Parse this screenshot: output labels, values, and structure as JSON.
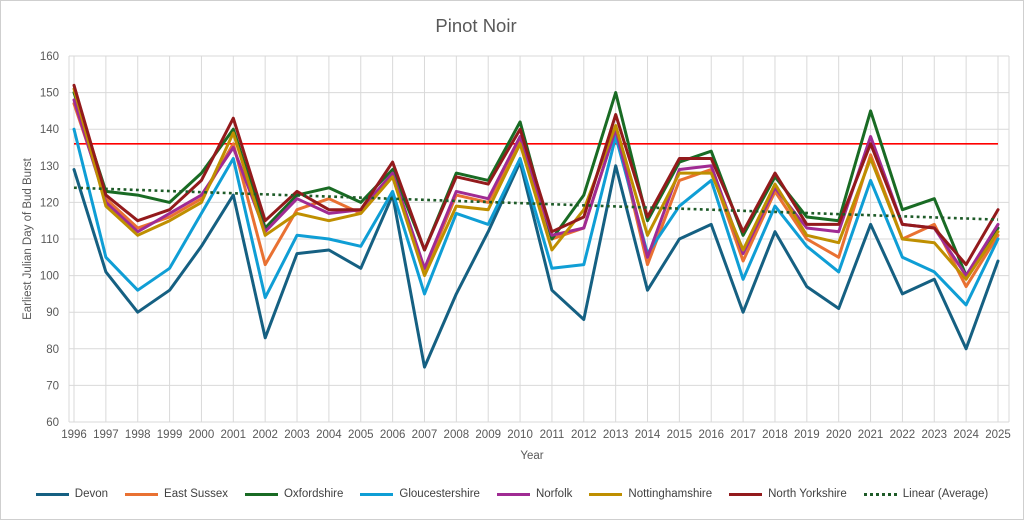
{
  "style": {
    "text_color": "#595959",
    "grid_color": "#D9D9D9",
    "legend_text_color": "#404040",
    "background": "#FFFFFF"
  },
  "chart_data": {
    "type": "line",
    "title": "Pinot Noir",
    "xlabel": "Year",
    "ylabel": "Earliest Julian Day of Bud Burst",
    "ylim": [
      60,
      160
    ],
    "yticks": [
      60,
      70,
      80,
      90,
      100,
      110,
      120,
      130,
      140,
      150,
      160
    ],
    "x": [
      1996,
      1997,
      1998,
      1999,
      2000,
      2001,
      2002,
      2003,
      2004,
      2005,
      2006,
      2007,
      2008,
      2009,
      2010,
      2011,
      2012,
      2013,
      2014,
      2015,
      2016,
      2017,
      2018,
      2019,
      2020,
      2021,
      2022,
      2023,
      2024,
      2025
    ],
    "grid": true,
    "legend_position": "bottom",
    "reference_line": {
      "value": 136,
      "color": "#FF0000"
    },
    "trendline": {
      "name": "Linear (Average)",
      "color": "#1E5B28",
      "style": "dotted",
      "start_value": 124.0,
      "end_value": 115.3
    },
    "series": [
      {
        "name": "Devon",
        "color": "#156082",
        "values": [
          129,
          101,
          90,
          96,
          108,
          122,
          83,
          106,
          107,
          102,
          122,
          75,
          95,
          112,
          131,
          96,
          88,
          130,
          96,
          110,
          114,
          90,
          112,
          97,
          91,
          114,
          95,
          99,
          80,
          104
        ]
      },
      {
        "name": "East Sussex",
        "color": "#E97132",
        "values": [
          147,
          121,
          113,
          116,
          121,
          136,
          103,
          118,
          121,
          117,
          127,
          101,
          122,
          120,
          137,
          110,
          113,
          140,
          103,
          126,
          129,
          104,
          123,
          110,
          105,
          133,
          110,
          114,
          97,
          111
        ]
      },
      {
        "name": "Oxfordshire",
        "color": "#196B24",
        "values": [
          150,
          123,
          122,
          120,
          128,
          140,
          113,
          122,
          124,
          120,
          129,
          107,
          128,
          126,
          142,
          110,
          122,
          150,
          115,
          131,
          134,
          111,
          127,
          116,
          115,
          145,
          118,
          121,
          100,
          113
        ]
      },
      {
        "name": "Gloucestershire",
        "color": "#0F9ED5",
        "values": [
          140,
          105,
          96,
          102,
          117,
          132,
          94,
          111,
          110,
          108,
          123,
          95,
          117,
          114,
          132,
          102,
          103,
          138,
          106,
          119,
          126,
          99,
          119,
          108,
          101,
          126,
          105,
          101,
          92,
          110
        ]
      },
      {
        "name": "Norfolk",
        "color": "#A02B93",
        "values": [
          148,
          120,
          112,
          117,
          122,
          135,
          112,
          121,
          117,
          118,
          128,
          102,
          123,
          121,
          138,
          111,
          113,
          140,
          105,
          129,
          130,
          106,
          124,
          113,
          112,
          138,
          114,
          113,
          100,
          114
        ]
      },
      {
        "name": "Nottinghamshire",
        "color": "#BF8F00",
        "values": [
          151,
          119,
          111,
          115,
          120,
          139,
          111,
          117,
          115,
          117,
          127,
          100,
          119,
          118,
          136,
          107,
          118,
          141,
          111,
          128,
          128,
          107,
          125,
          111,
          109,
          132,
          110,
          109,
          99,
          112
        ]
      },
      {
        "name": "North Yorkshire",
        "color": "#931A1C",
        "values": [
          152,
          122,
          115,
          118,
          126,
          143,
          115,
          123,
          118,
          118,
          131,
          107,
          127,
          125,
          140,
          112,
          116,
          144,
          116,
          132,
          132,
          112,
          128,
          114,
          114,
          136,
          114,
          113,
          103,
          118
        ]
      }
    ]
  }
}
